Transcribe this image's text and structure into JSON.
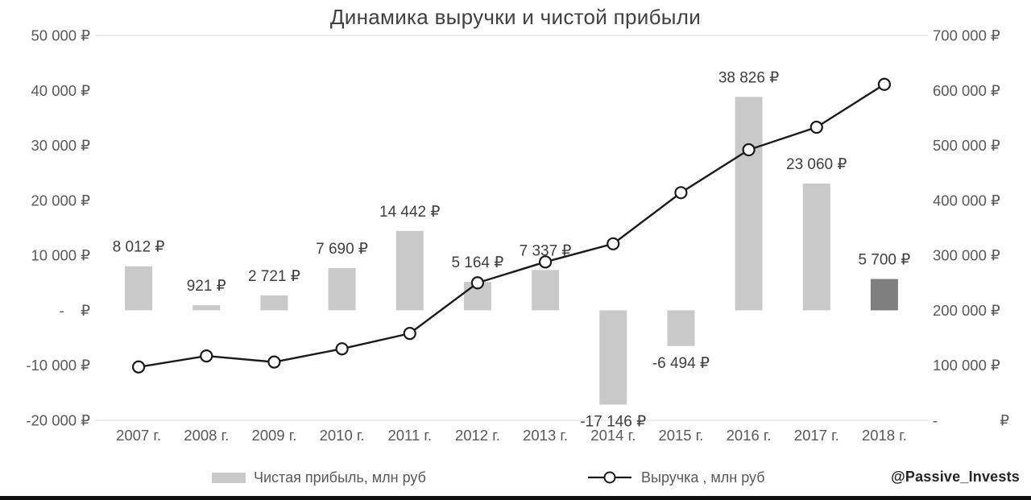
{
  "watermark": "@Passive_Invests",
  "legend": {
    "bars_label": "Чистая прибыль, млн руб",
    "line_label": "Выручка , млн руб"
  },
  "chart_data": {
    "type": "combo-bar-line",
    "title": "Динамика выручки и чистой прибыли",
    "categories": [
      "2007 г.",
      "2008 г.",
      "2009 г.",
      "2010 г.",
      "2011 г.",
      "2012 г.",
      "2013 г.",
      "2014 г.",
      "2015 г.",
      "2016 г.",
      "2017 г.",
      "2018 г."
    ],
    "series": [
      {
        "name": "Чистая прибыль, млн руб",
        "type": "bar",
        "axis": "left",
        "values": [
          8012,
          921,
          2721,
          7690,
          14442,
          5164,
          7337,
          -17146,
          -6494,
          38826,
          23060,
          5700
        ],
        "labels": [
          "8 012 ₽",
          "921 ₽",
          "2 721 ₽",
          "7 690 ₽",
          "14 442 ₽",
          "5 164 ₽",
          "7 337 ₽",
          "-17 146 ₽",
          "-6 494 ₽",
          "38 826 ₽",
          "23 060 ₽",
          "5 700 ₽"
        ],
        "highlight_index": 11
      },
      {
        "name": "Выручка , млн руб",
        "type": "line",
        "axis": "right",
        "values": [
          97000,
          117000,
          106000,
          130000,
          158000,
          250000,
          288000,
          321000,
          414000,
          492000,
          533000,
          611000
        ]
      }
    ],
    "left_axis": {
      "min": -20000,
      "max": 50000,
      "ticks": [
        {
          "value": 50000,
          "label": "50 000 ₽"
        },
        {
          "value": 40000,
          "label": "40 000 ₽"
        },
        {
          "value": 30000,
          "label": "30 000 ₽"
        },
        {
          "value": 20000,
          "label": "20 000 ₽"
        },
        {
          "value": 10000,
          "label": "10 000 ₽"
        },
        {
          "value": 0,
          "label": "-    ₽"
        },
        {
          "value": -10000,
          "label": "-10 000 ₽"
        },
        {
          "value": -20000,
          "label": "-20 000 ₽"
        }
      ]
    },
    "right_axis": {
      "min": 0,
      "max": 700000,
      "ticks": [
        {
          "value": 700000,
          "label": "700 000 ₽"
        },
        {
          "value": 600000,
          "label": "600 000 ₽"
        },
        {
          "value": 500000,
          "label": "500 000 ₽"
        },
        {
          "value": 400000,
          "label": "400 000 ₽"
        },
        {
          "value": 300000,
          "label": "300 000 ₽"
        },
        {
          "value": 200000,
          "label": "200 000 ₽"
        },
        {
          "value": 100000,
          "label": "100 000 ₽"
        },
        {
          "value": 0,
          "label": "-               ₽"
        }
      ]
    },
    "colors": {
      "bar": "#c9c9c9",
      "bar_highlight": "#7f7f7f",
      "line": "#1a1a1a",
      "grid": "#d9d9d9",
      "axis_text": "#595959",
      "label_text": "#3f3f3f"
    },
    "grid": "top-and-baseline-only",
    "legend_position": "bottom"
  }
}
